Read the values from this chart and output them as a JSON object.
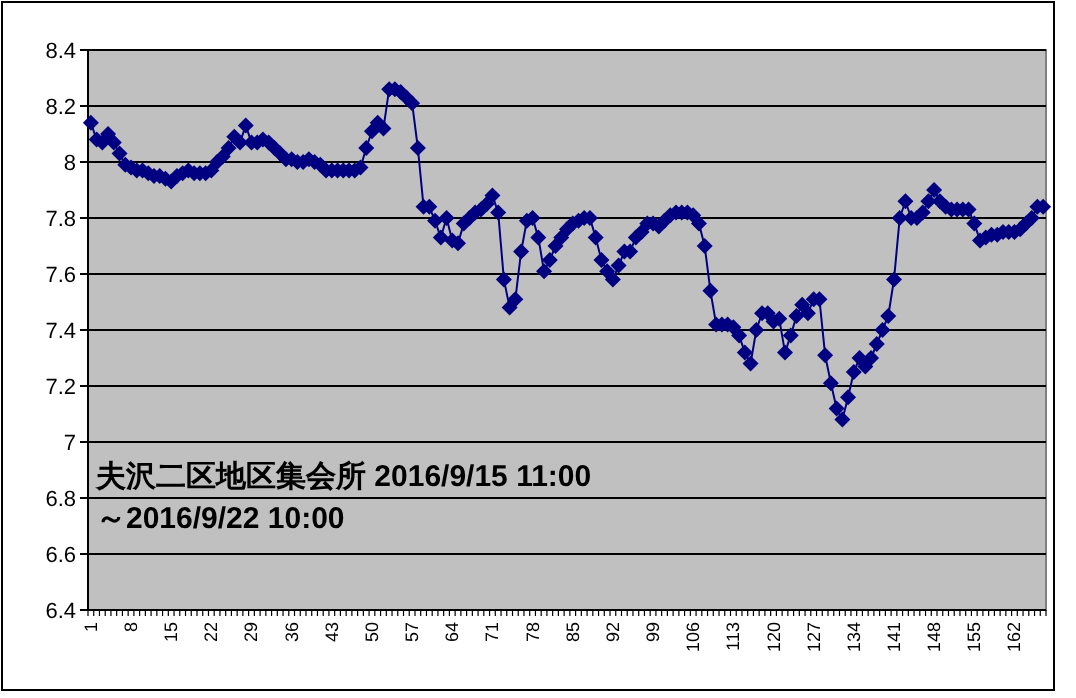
{
  "chart_data": {
    "type": "line",
    "annotations": [
      "夫沢二区地区集会所 2016/9/15 11:00",
      "～2016/9/22 10:00"
    ],
    "categories": [
      "1",
      null,
      null,
      null,
      null,
      null,
      null,
      "8",
      null,
      null,
      null,
      null,
      null,
      null,
      "15",
      null,
      null,
      null,
      null,
      null,
      null,
      "22",
      null,
      null,
      null,
      null,
      null,
      null,
      "29",
      null,
      null,
      null,
      null,
      null,
      null,
      "36",
      null,
      null,
      null,
      null,
      null,
      null,
      "43",
      null,
      null,
      null,
      null,
      null,
      null,
      "50",
      null,
      null,
      null,
      null,
      null,
      null,
      "57",
      null,
      null,
      null,
      null,
      null,
      null,
      "64",
      null,
      null,
      null,
      null,
      null,
      null,
      "71",
      null,
      null,
      null,
      null,
      null,
      null,
      "78",
      null,
      null,
      null,
      null,
      null,
      null,
      "85",
      null,
      null,
      null,
      null,
      null,
      null,
      "92",
      null,
      null,
      null,
      null,
      null,
      null,
      "99",
      null,
      null,
      null,
      null,
      null,
      null,
      "106",
      null,
      null,
      null,
      null,
      null,
      null,
      "113",
      null,
      null,
      null,
      null,
      null,
      null,
      "120",
      null,
      null,
      null,
      null,
      null,
      null,
      "127",
      null,
      null,
      null,
      null,
      null,
      null,
      "134",
      null,
      null,
      null,
      null,
      null,
      null,
      "141",
      null,
      null,
      null,
      null,
      null,
      null,
      "148",
      null,
      null,
      null,
      null,
      null,
      null,
      "155",
      null,
      null,
      null,
      null,
      null,
      null,
      "162",
      null,
      null,
      null,
      null,
      null
    ],
    "series": [
      {
        "color": "#000080",
        "values": [
          8.14,
          8.08,
          8.07,
          8.1,
          8.07,
          8.03,
          7.99,
          7.98,
          7.97,
          7.97,
          7.96,
          7.95,
          7.95,
          7.94,
          7.93,
          7.95,
          7.96,
          7.97,
          7.96,
          7.96,
          7.96,
          7.97,
          8.0,
          8.02,
          8.05,
          8.09,
          8.07,
          8.13,
          8.07,
          8.07,
          8.08,
          8.07,
          8.05,
          8.03,
          8.01,
          8.01,
          8.0,
          8.0,
          8.01,
          8.0,
          7.99,
          7.97,
          7.97,
          7.97,
          7.97,
          7.97,
          7.97,
          7.98,
          8.05,
          8.11,
          8.14,
          8.12,
          8.26,
          8.26,
          8.25,
          8.23,
          8.21,
          8.05,
          7.84,
          7.84,
          7.79,
          7.73,
          7.8,
          7.72,
          7.71,
          7.78,
          7.8,
          7.82,
          7.83,
          7.85,
          7.88,
          7.82,
          7.58,
          7.48,
          7.51,
          7.68,
          7.79,
          7.8,
          7.73,
          7.61,
          7.65,
          7.7,
          7.73,
          7.76,
          7.78,
          7.79,
          7.8,
          7.8,
          7.73,
          7.65,
          7.61,
          7.58,
          7.63,
          7.68,
          7.68,
          7.73,
          7.75,
          7.78,
          7.78,
          7.77,
          7.79,
          7.81,
          7.82,
          7.82,
          7.82,
          7.81,
          7.78,
          7.7,
          7.54,
          7.42,
          7.42,
          7.42,
          7.41,
          7.38,
          7.32,
          7.28,
          7.4,
          7.46,
          7.46,
          7.43,
          7.44,
          7.32,
          7.38,
          7.45,
          7.49,
          7.46,
          7.51,
          7.51,
          7.31,
          7.21,
          7.12,
          7.08,
          7.16,
          7.25,
          7.3,
          7.27,
          7.3,
          7.35,
          7.4,
          7.45,
          7.58,
          7.8,
          7.86,
          7.8,
          7.8,
          7.82,
          7.86,
          7.9,
          7.86,
          7.84,
          7.83,
          7.83,
          7.83,
          7.83,
          7.78,
          7.72,
          7.73,
          7.74,
          7.74,
          7.75,
          7.75,
          7.75,
          7.76,
          7.78,
          7.8,
          7.84,
          7.84
        ]
      }
    ],
    "ylim": [
      6.4,
      8.4
    ],
    "yticks": [
      6.4,
      6.6,
      6.8,
      7,
      7.2,
      7.4,
      7.6,
      7.8,
      8,
      8.2,
      8.4
    ],
    "grid": "y",
    "marker": "diamond"
  }
}
